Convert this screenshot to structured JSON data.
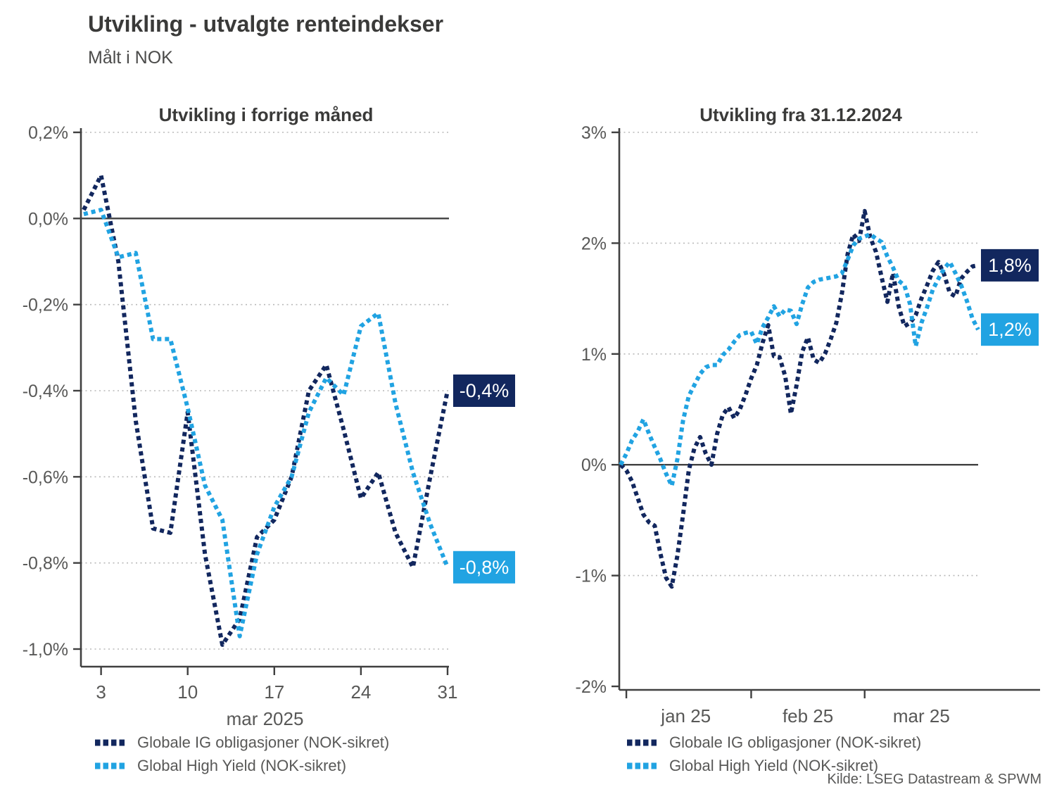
{
  "header": {
    "title": "Utvikling - utvalgte renteindekser",
    "subtitle": "Målt i NOK"
  },
  "source": "Kilde: LSEG Datastream & SPWM",
  "colors": {
    "ig_navy": "#12275E",
    "hy_blue": "#21A3E2",
    "grid": "#b9b9b9",
    "axis": "#404040",
    "tick_text": "#585857"
  },
  "legend": [
    {
      "label": "Globale IG obligasjoner (NOK-sikret)",
      "color": "#12275E"
    },
    {
      "label": "Global High Yield (NOK-sikret)",
      "color": "#21A3E2"
    }
  ],
  "chart_data": [
    {
      "type": "line",
      "title": "Utvikling i forrige måned",
      "xlabel": "mar 2025",
      "ylabel": "",
      "ylim": [
        -1.0,
        0.2
      ],
      "grid": "dotted horizontal",
      "x": [
        "28.02",
        "03.03",
        "04.03",
        "05.03",
        "06.03",
        "07.03",
        "10.03",
        "11.03",
        "12.03",
        "13.03",
        "14.03",
        "17.03",
        "18.03",
        "19.03",
        "20.03",
        "21.03",
        "24.03",
        "25.03",
        "26.03",
        "27.03",
        "28.03",
        "31.03"
      ],
      "yticks": [
        {
          "v": 0.2,
          "label": "0,2%",
          "grid": true,
          "zero": false
        },
        {
          "v": 0.0,
          "label": "0,0%",
          "grid": false,
          "zero": true
        },
        {
          "v": -0.2,
          "label": "-0,2%",
          "grid": true,
          "zero": false
        },
        {
          "v": -0.4,
          "label": "-0,4%",
          "grid": true,
          "zero": false
        },
        {
          "v": -0.6,
          "label": "-0,6%",
          "grid": true,
          "zero": false
        },
        {
          "v": -0.8,
          "label": "-0,8%",
          "grid": true,
          "zero": false
        },
        {
          "v": -1.0,
          "label": "-1,0%",
          "grid": true,
          "zero": false
        }
      ],
      "xticks": [
        {
          "i": 1,
          "label_i": 1,
          "label": "3"
        },
        {
          "i": 6,
          "label_i": 6,
          "label": "10"
        },
        {
          "i": 11,
          "label_i": 11,
          "label": "17"
        },
        {
          "i": 16,
          "label_i": 16,
          "label": "24"
        },
        {
          "i": 21,
          "label_i": 21,
          "label": "31"
        }
      ],
      "series": [
        {
          "name": "Globale IG obligasjoner (NOK-sikret)",
          "color": "#12275E",
          "end_label": "-0,4%",
          "values": [
            0.02,
            0.1,
            -0.1,
            -0.47,
            -0.72,
            -0.73,
            -0.45,
            -0.78,
            -0.99,
            -0.93,
            -0.74,
            -0.7,
            -0.6,
            -0.4,
            -0.34,
            -0.49,
            -0.65,
            -0.59,
            -0.73,
            -0.81,
            -0.6,
            -0.4
          ]
        },
        {
          "name": "Global High Yield (NOK-sikret)",
          "color": "#21A3E2",
          "end_label": "-0,8%",
          "values": [
            0.01,
            0.02,
            -0.09,
            -0.08,
            -0.28,
            -0.28,
            -0.44,
            -0.62,
            -0.7,
            -0.97,
            -0.78,
            -0.67,
            -0.6,
            -0.45,
            -0.37,
            -0.41,
            -0.25,
            -0.22,
            -0.43,
            -0.59,
            -0.71,
            -0.81
          ]
        }
      ]
    },
    {
      "type": "line",
      "title": "Utvikling fra 31.12.2024",
      "xlabel": "",
      "ylabel": "",
      "ylim": [
        -2,
        3
      ],
      "grid": "dotted horizontal",
      "x": [
        "31.12",
        "02.01",
        "03.01",
        "06.01",
        "07.01",
        "08.01",
        "09.01",
        "10.01",
        "13.01",
        "14.01",
        "15.01",
        "16.01",
        "17.01",
        "20.01",
        "21.01",
        "22.01",
        "23.01",
        "24.01",
        "27.01",
        "28.01",
        "29.01",
        "30.01",
        "31.01",
        "03.02",
        "04.02",
        "05.02",
        "06.02",
        "07.02",
        "10.02",
        "11.02",
        "12.02",
        "13.02",
        "14.02",
        "17.02",
        "18.02",
        "19.02",
        "20.02",
        "21.02",
        "24.02",
        "25.02",
        "26.02",
        "27.02",
        "28.02",
        "03.03",
        "04.03",
        "05.03",
        "06.03",
        "07.03",
        "10.03",
        "11.03",
        "12.03",
        "13.03",
        "14.03",
        "17.03",
        "18.03",
        "19.03",
        "20.03",
        "21.03",
        "24.03",
        "25.03",
        "26.03",
        "27.03",
        "28.03",
        "31.03"
      ],
      "yticks": [
        {
          "v": 3,
          "label": "3%",
          "grid": true,
          "zero": false
        },
        {
          "v": 2,
          "label": "2%",
          "grid": true,
          "zero": false
        },
        {
          "v": 1,
          "label": "1%",
          "grid": true,
          "zero": false
        },
        {
          "v": 0,
          "label": "0%",
          "grid": false,
          "zero": true
        },
        {
          "v": -1,
          "label": "-1%",
          "grid": true,
          "zero": false
        },
        {
          "v": -2,
          "label": "-2%",
          "grid": false,
          "zero": false
        }
      ],
      "xticks": [
        {
          "i": 1,
          "label_i": 11.5,
          "label": "jan 25"
        },
        {
          "i": 23,
          "label_i": 33,
          "label": "feb 25"
        },
        {
          "i": 43,
          "label_i": 53,
          "label": "mar 25"
        }
      ],
      "series": [
        {
          "name": "Globale IG obligasjoner (NOK-sikret)",
          "color": "#12275E",
          "end_label": "1,8%",
          "values": [
            0.0,
            -0.05,
            -0.15,
            -0.3,
            -0.45,
            -0.52,
            -0.55,
            -0.8,
            -1.02,
            -1.1,
            -0.82,
            -0.45,
            -0.05,
            0.15,
            0.25,
            0.1,
            0.0,
            0.28,
            0.45,
            0.52,
            0.42,
            0.5,
            0.63,
            0.78,
            0.9,
            1.1,
            1.26,
            0.98,
            0.97,
            0.8,
            0.46,
            0.72,
            1.02,
            1.15,
            0.95,
            0.92,
            1.0,
            1.13,
            1.28,
            1.55,
            1.9,
            2.08,
            2.02,
            2.29,
            2.05,
            1.92,
            1.69,
            1.47,
            1.73,
            1.43,
            1.25,
            1.28,
            1.35,
            1.5,
            1.62,
            1.75,
            1.83,
            1.72,
            1.55,
            1.52,
            1.68,
            1.74,
            1.79,
            1.8
          ]
        },
        {
          "name": "Global High Yield (NOK-sikret)",
          "color": "#21A3E2",
          "end_label": "1,2%",
          "values": [
            0.0,
            0.1,
            0.22,
            0.3,
            0.41,
            0.28,
            0.16,
            0.05,
            -0.08,
            -0.19,
            0.05,
            0.4,
            0.62,
            0.72,
            0.82,
            0.88,
            0.9,
            0.9,
            0.99,
            1.04,
            1.11,
            1.17,
            1.19,
            1.2,
            1.09,
            1.24,
            1.33,
            1.43,
            1.34,
            1.4,
            1.39,
            1.27,
            1.45,
            1.6,
            1.65,
            1.67,
            1.68,
            1.69,
            1.7,
            1.73,
            1.85,
            1.98,
            2.04,
            2.06,
            2.08,
            2.04,
            2.01,
            1.88,
            1.78,
            1.66,
            1.62,
            1.45,
            1.07,
            1.28,
            1.42,
            1.58,
            1.68,
            1.77,
            1.83,
            1.73,
            1.62,
            1.48,
            1.32,
            1.22
          ]
        }
      ]
    }
  ]
}
